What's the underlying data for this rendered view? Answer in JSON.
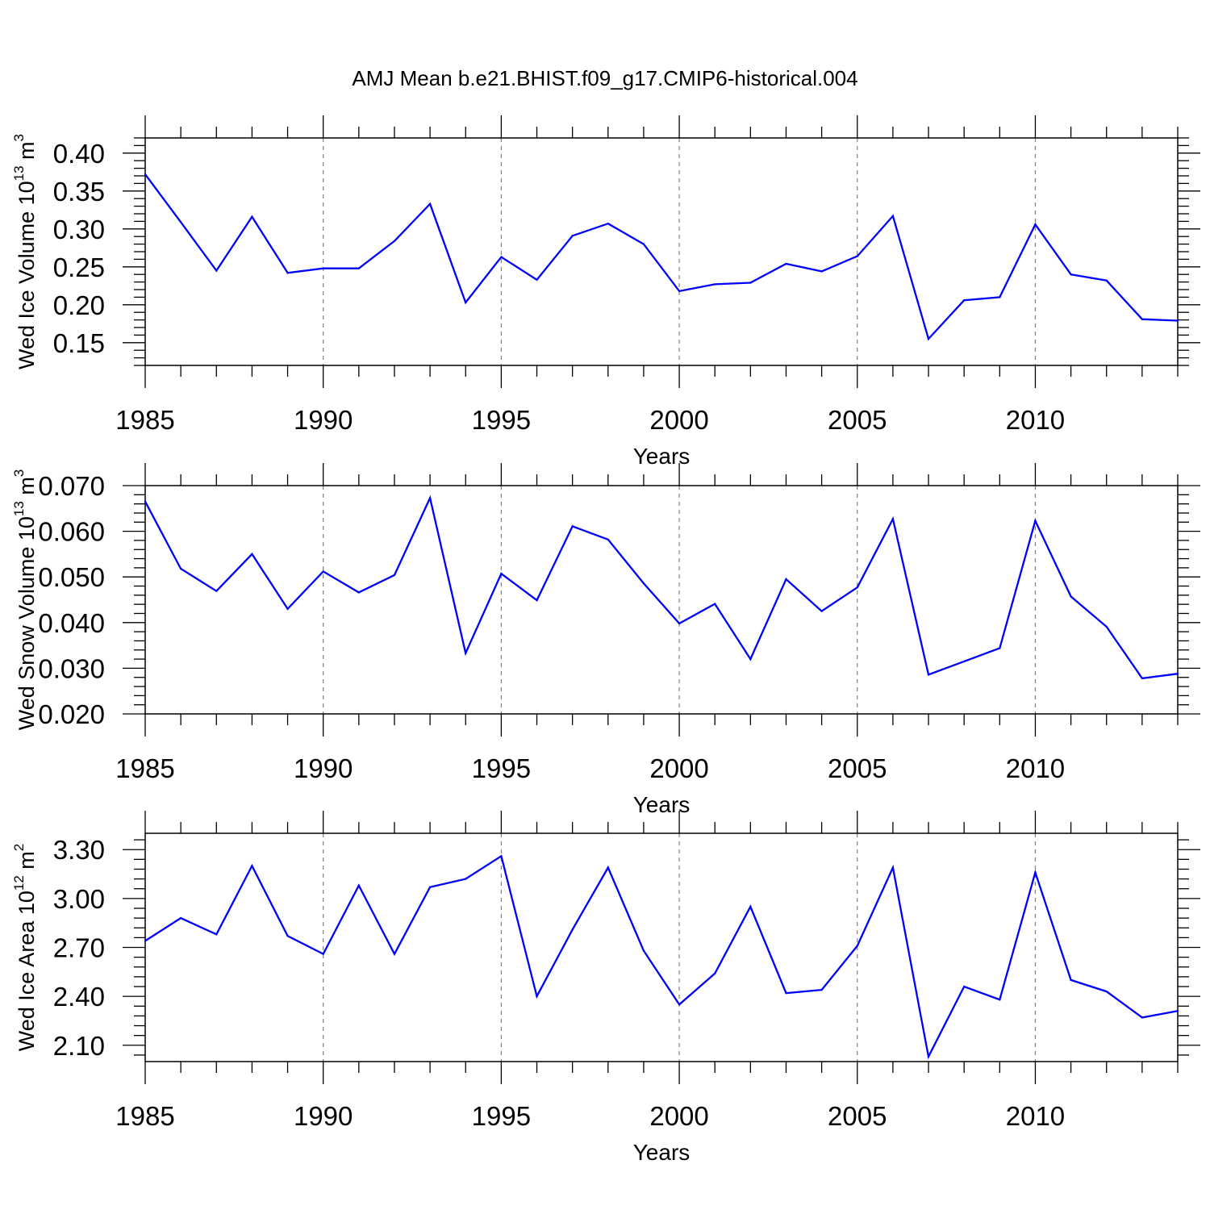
{
  "title": "AMJ Mean b.e21.BHIST.f09_g17.CMIP6-historical.004",
  "colors": {
    "line": "#0000ff",
    "axis": "#000000",
    "grid": "#808080"
  },
  "chart_data": [
    {
      "type": "line",
      "name": "ice-volume",
      "xlabel": "Years",
      "ylabel": {
        "prefix": "Wed Ice Volume 10",
        "exp": "13",
        "unit": " m",
        "unit_exp": "3"
      },
      "xlim": [
        1985,
        2014
      ],
      "ylim": [
        0.12,
        0.42
      ],
      "x_ticks": [
        "1985",
        "1990",
        "1995",
        "2000",
        "2005",
        "2010"
      ],
      "y_ticks": [
        "0.15",
        "0.20",
        "0.25",
        "0.30",
        "0.35",
        "0.40"
      ],
      "x": [
        1985,
        1986,
        1987,
        1988,
        1989,
        1990,
        1991,
        1992,
        1993,
        1994,
        1995,
        1996,
        1997,
        1998,
        1999,
        2000,
        2001,
        2002,
        2003,
        2004,
        2005,
        2006,
        2007,
        2008,
        2009,
        2010,
        2011,
        2012,
        2013,
        2014
      ],
      "values": [
        0.372,
        0.309,
        0.245,
        0.316,
        0.242,
        0.248,
        0.248,
        0.284,
        0.333,
        0.203,
        0.263,
        0.233,
        0.291,
        0.307,
        0.28,
        0.218,
        0.227,
        0.229,
        0.254,
        0.244,
        0.264,
        0.317,
        0.155,
        0.206,
        0.21,
        0.306,
        0.24,
        0.232,
        0.181,
        0.179
      ]
    },
    {
      "type": "line",
      "name": "snow-volume",
      "xlabel": "Years",
      "ylabel": {
        "prefix": "Wed Snow Volume 10",
        "exp": "13",
        "unit": " m",
        "unit_exp": "3"
      },
      "xlim": [
        1985,
        2014
      ],
      "ylim": [
        0.02,
        0.07
      ],
      "x_ticks": [
        "1985",
        "1990",
        "1995",
        "2000",
        "2005",
        "2010"
      ],
      "y_ticks": [
        "0.020",
        "0.030",
        "0.040",
        "0.050",
        "0.060",
        "0.070"
      ],
      "x": [
        1985,
        1986,
        1987,
        1988,
        1989,
        1990,
        1991,
        1992,
        1993,
        1994,
        1995,
        1996,
        1997,
        1998,
        1999,
        2000,
        2001,
        2002,
        2003,
        2004,
        2005,
        2006,
        2007,
        2008,
        2009,
        2010,
        2011,
        2012,
        2013,
        2014
      ],
      "values": [
        0.0665,
        0.0518,
        0.0469,
        0.055,
        0.043,
        0.0512,
        0.0466,
        0.0504,
        0.0673,
        0.0333,
        0.0507,
        0.0449,
        0.0611,
        0.0582,
        0.0486,
        0.0398,
        0.0441,
        0.032,
        0.0495,
        0.0425,
        0.0477,
        0.0627,
        0.0286,
        0.0315,
        0.0344,
        0.0623,
        0.0457,
        0.0391,
        0.0278,
        0.0288
      ]
    },
    {
      "type": "line",
      "name": "ice-area",
      "xlabel": "Years",
      "ylabel": {
        "prefix": "Wed Ice Area 10",
        "exp": "12",
        "unit": " m",
        "unit_exp": "2"
      },
      "xlim": [
        1985,
        2014
      ],
      "ylim": [
        2.0,
        3.4
      ],
      "x_ticks": [
        "1985",
        "1990",
        "1995",
        "2000",
        "2005",
        "2010"
      ],
      "y_ticks": [
        "2.10",
        "2.40",
        "2.70",
        "3.00",
        "3.30"
      ],
      "x": [
        1985,
        1986,
        1987,
        1988,
        1989,
        1990,
        1991,
        1992,
        1993,
        1994,
        1995,
        1996,
        1997,
        1998,
        1999,
        2000,
        2001,
        2002,
        2003,
        2004,
        2005,
        2006,
        2007,
        2008,
        2009,
        2010,
        2011,
        2012,
        2013,
        2014
      ],
      "values": [
        2.74,
        2.88,
        2.78,
        3.2,
        2.77,
        2.66,
        3.08,
        2.66,
        3.07,
        3.12,
        3.26,
        2.4,
        2.81,
        3.19,
        2.68,
        2.35,
        2.54,
        2.95,
        2.42,
        2.44,
        2.71,
        3.19,
        2.03,
        2.46,
        2.38,
        3.16,
        2.5,
        2.43,
        2.27,
        2.31
      ]
    }
  ]
}
